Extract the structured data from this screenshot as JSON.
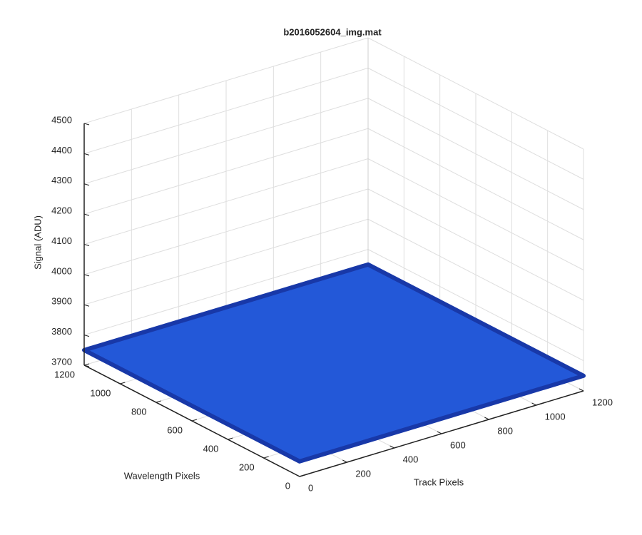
{
  "chart_data": {
    "type": "surface",
    "title": "b2016052604_img.mat",
    "xlabel": "Track Pixels",
    "ylabel": "Wavelength Pixels",
    "zlabel": "Signal (ADU)",
    "x": [
      0,
      1200
    ],
    "y": [
      0,
      1200
    ],
    "z": [
      [
        3750,
        3750
      ],
      [
        3750,
        3750
      ]
    ],
    "color": "#2358d8",
    "xlim": [
      0,
      1200
    ],
    "ylim": [
      0,
      1200
    ],
    "zlim": [
      3700,
      4500
    ],
    "xticks": [
      0,
      200,
      400,
      600,
      800,
      1000,
      1200
    ],
    "yticks": [
      0,
      200,
      400,
      600,
      800,
      1000,
      1200
    ],
    "zticks": [
      3700,
      3800,
      3900,
      4000,
      4100,
      4200,
      4300,
      4400,
      4500
    ],
    "grid": true
  }
}
